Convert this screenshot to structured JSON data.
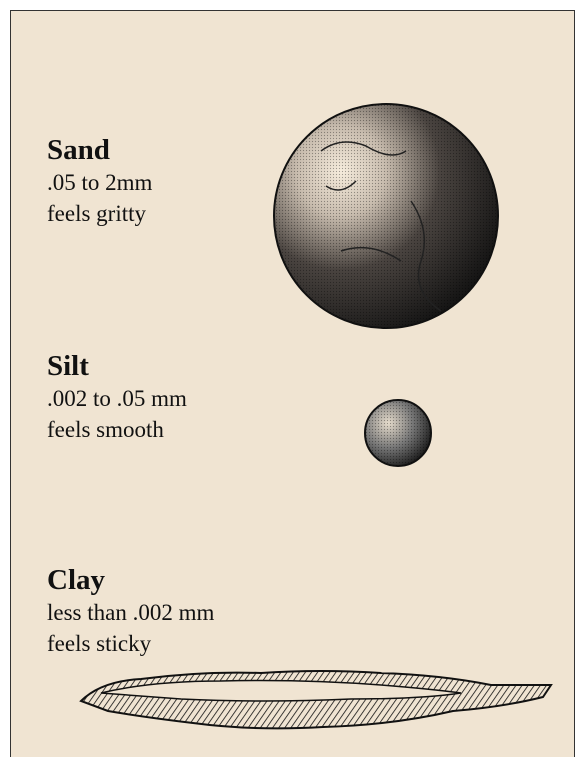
{
  "particles": [
    {
      "name": "Sand",
      "size": ".05 to 2mm",
      "feel": "feels gritty"
    },
    {
      "name": "Silt",
      "size": ".002 to .05 mm",
      "feel": "feels smooth"
    },
    {
      "name": "Clay",
      "size": "less than .002 mm",
      "feel": "feels sticky"
    }
  ]
}
